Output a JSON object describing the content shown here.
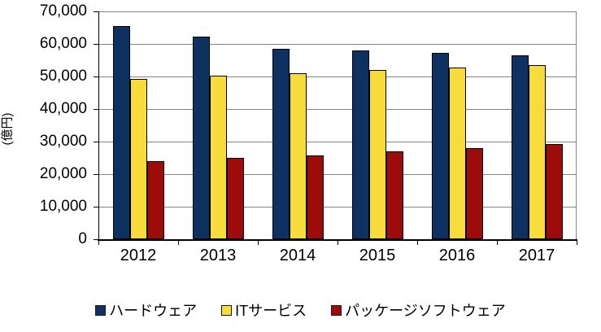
{
  "chart_data": {
    "type": "bar",
    "title": "",
    "ylabel": "(億円)",
    "xlabel": "",
    "categories": [
      "2012",
      "2013",
      "2014",
      "2015",
      "2016",
      "2017"
    ],
    "series": [
      {
        "name": "ハードウェア",
        "color": "#0D3262",
        "values": [
          65600,
          62300,
          58600,
          58000,
          57200,
          56500
        ]
      },
      {
        "name": "ITサービス",
        "color": "#F8DC3C",
        "values": [
          49200,
          50300,
          51000,
          52000,
          52800,
          53400
        ]
      },
      {
        "name": "パッケージソフトウェア",
        "color": "#9E0B0B",
        "values": [
          24000,
          25000,
          25800,
          27000,
          28000,
          29300
        ]
      }
    ],
    "ylim": [
      0,
      70000
    ],
    "ytick_step": 10000,
    "ytick_labels": [
      "0",
      "10,000",
      "20,000",
      "30,000",
      "40,000",
      "50,000",
      "60,000",
      "70,000"
    ],
    "grid": true,
    "legend_position": "bottom"
  },
  "colors": {
    "background": "#FFFFFF",
    "gridline": "#848484",
    "axis": "#000000",
    "text": "#000000"
  }
}
